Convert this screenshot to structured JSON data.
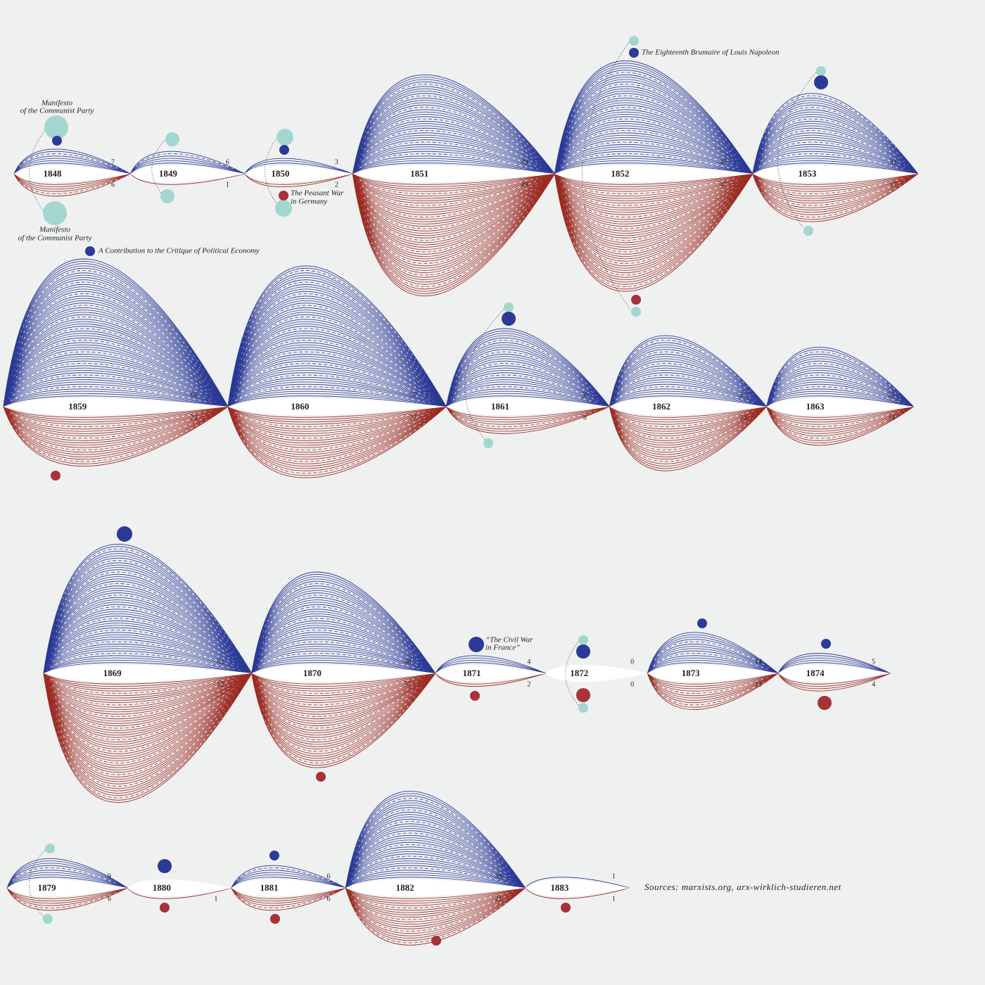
{
  "chart_data": {
    "type": "wave",
    "categories": [
      "1848",
      "1849",
      "1850",
      "1851",
      "1852",
      "1853",
      "1859",
      "1860",
      "1861",
      "1862",
      "1863",
      "1869",
      "1870",
      "1871",
      "1872",
      "1873",
      "1874",
      "1879",
      "1880",
      "1881",
      "1882",
      "1883"
    ],
    "series": [
      {
        "color": "#2b3a96",
        "values": [
          7,
          6,
          3,
          39,
          45,
          31,
          60,
          57,
          30,
          27,
          22,
          52,
          40,
          4,
          0,
          14,
          5,
          9,
          null,
          6,
          38,
          1
        ]
      },
      {
        "color": "#9b2c24",
        "values": [
          6,
          1,
          2,
          49,
          47,
          17,
          22,
          27,
          8,
          24,
          13,
          52,
          37,
          2,
          0,
          12,
          4,
          6,
          1,
          6,
          21,
          1
        ]
      }
    ],
    "annotations": [
      {
        "lines": [
          "Manifesto",
          "of the Communist Party"
        ]
      },
      {
        "lines": [
          "Manifesto",
          "of the Communist Party"
        ]
      },
      {
        "lines": [
          "The Peasant War",
          "in Germany"
        ]
      },
      {
        "lines": [
          "The Eighteenth Brumaire of Louis Napoleon"
        ]
      },
      {
        "lines": [
          "A Contribution to the Critique of Political Economy"
        ]
      },
      {
        "lines": [
          "“The Civil War",
          "in France”"
        ]
      }
    ],
    "source": "Sources: marxists.org, arx-wirklich-studieren.net"
  }
}
